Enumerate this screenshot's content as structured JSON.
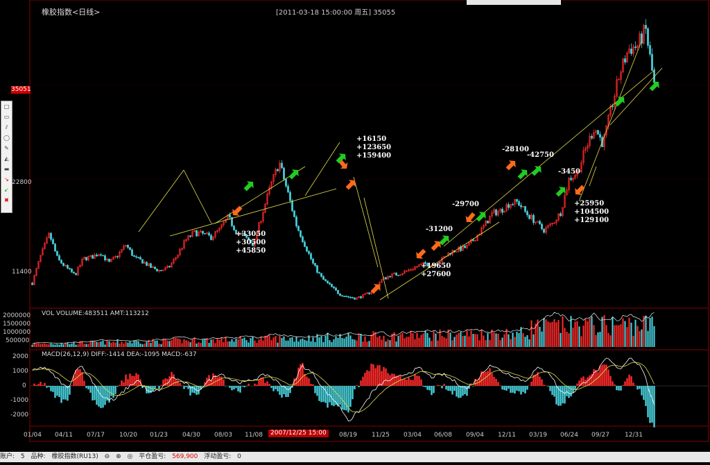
{
  "title": "橡胶指数<日线>",
  "header_info": "[2011-03-18  15:00:00 周五]   35055",
  "price_tag": "35051",
  "y_labels": [
    "22800",
    "11400"
  ],
  "volume_label": "VOL  VOLUME:483511 AMT:113212",
  "volume_ticks": [
    "2000000",
    "1500000",
    "1000000",
    "500000"
  ],
  "macd_label": "MACD(26,12,9)  DIFF:-1414 DEA:-1095 MACD:-637",
  "macd_ticks": [
    "2000",
    "1000",
    "0",
    "-1000",
    "-2000"
  ],
  "date_tag": "2007/12/25 15:00",
  "x_labels": [
    "01/04",
    "04/11",
    "07/17",
    "10/20",
    "01/23",
    "04/30",
    "08/03",
    "11/08",
    "08/19",
    "11/25",
    "03/04",
    "06/08",
    "09/04",
    "12/11",
    "03/19",
    "06/24",
    "09/27",
    "12/31"
  ],
  "annotations": [
    {
      "lines": [
        "+33050",
        "+30500",
        "+45850"
      ]
    },
    {
      "lines": [
        "+16150",
        "+123650",
        "+159400"
      ]
    },
    {
      "lines": [
        "+19650",
        "+27600"
      ]
    },
    {
      "lines": [
        "-31200"
      ]
    },
    {
      "lines": [
        "-29700"
      ]
    },
    {
      "lines": [
        "-28100"
      ]
    },
    {
      "lines": [
        "-42750"
      ]
    },
    {
      "lines": [
        "-3450"
      ]
    },
    {
      "lines": [
        "+25950",
        "+104500",
        "+129100"
      ]
    }
  ],
  "status": {
    "account_label": "账户:",
    "account_value": "5",
    "species_label": "品种:",
    "species_value": "橡胶指数(RU13)",
    "pos_label": "平仓盈亏:",
    "pos_value": "569,900",
    "float_label": "浮动盈亏:",
    "float_value": "0"
  },
  "colors": {
    "up": "#ff2a2a",
    "down": "#47d1dc",
    "trend": "#e8e04a",
    "buy": "#ff6a1a",
    "sell": "#22cc22"
  },
  "chart_data": {
    "type": "candlestick",
    "price_series": [
      9200,
      12800,
      15600,
      12300,
      11200,
      10200,
      12400,
      12600,
      13200,
      11800,
      12800,
      14200,
      12500,
      12000,
      11200,
      10800,
      11200,
      12800,
      14800,
      15800,
      15600,
      15200,
      16200,
      17800,
      15800,
      15200,
      14200,
      18300,
      22000,
      25000,
      21000,
      16800,
      14200,
      11600,
      9800,
      8800,
      7800,
      7400,
      7200,
      7600,
      8200,
      9600,
      10200,
      10400,
      10800,
      11300,
      11700,
      11600,
      12200,
      13200,
      13600,
      13900,
      15100,
      16600,
      18300,
      18700,
      19600,
      19800,
      18300,
      17300,
      16100,
      16900,
      18400,
      22800,
      23700,
      26900,
      29600,
      27400,
      32200,
      36800,
      39800,
      40200,
      42400,
      35100
    ],
    "macd_diff": [
      1000,
      1300,
      600,
      -200,
      1500,
      500,
      -800,
      -1000,
      -200,
      400,
      -500,
      -200,
      600,
      200,
      -400,
      300,
      900,
      400,
      200,
      500,
      800,
      200,
      -300,
      1400,
      800,
      -400,
      -1200,
      -2400,
      -1600,
      -400,
      300,
      500,
      900,
      1200,
      600,
      800,
      300,
      -200,
      500,
      1500,
      1000,
      700,
      300,
      1200,
      1000,
      -400,
      -500,
      200,
      900,
      1900,
      1100,
      2000,
      1200,
      -1400
    ],
    "ylim_price": [
      7000,
      43500
    ],
    "ylim_macd": [
      -2500,
      2200
    ]
  }
}
